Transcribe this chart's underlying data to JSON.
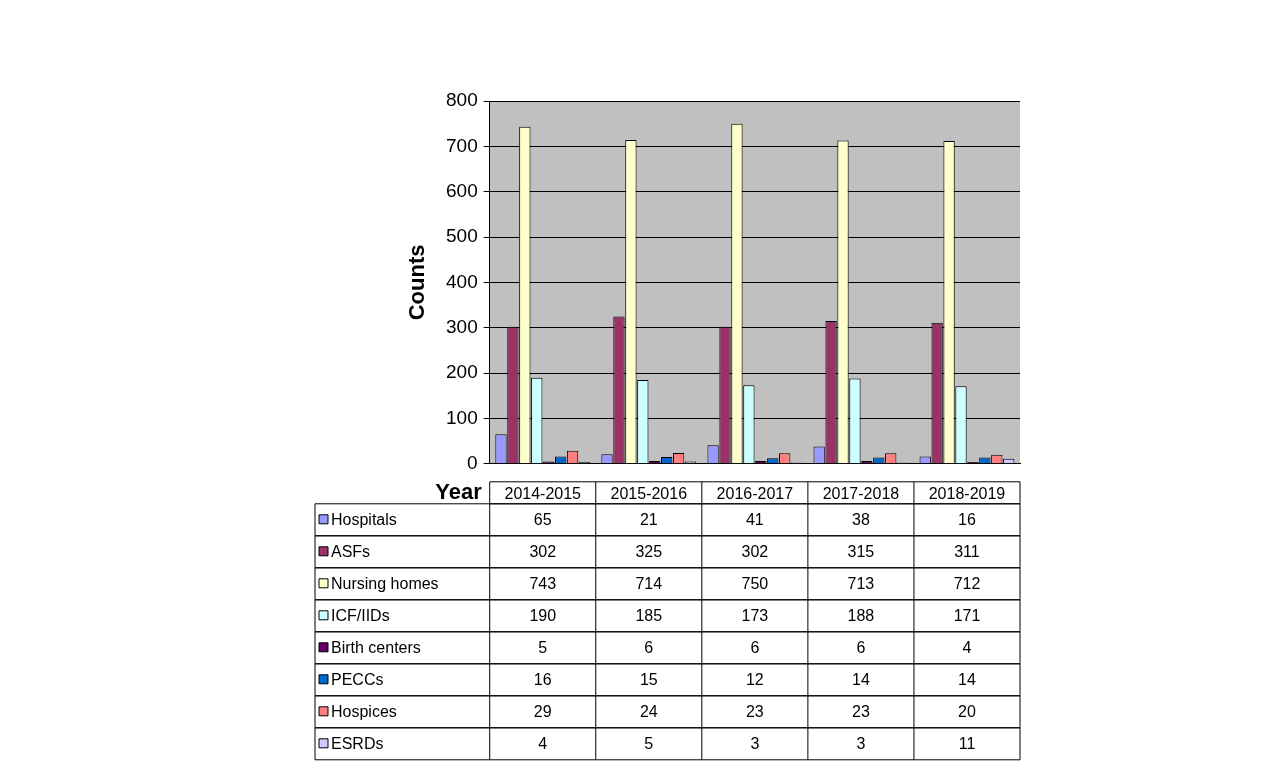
{
  "chart_data": {
    "type": "bar",
    "xlabel": "Year",
    "ylabel": "Counts",
    "categories": [
      "2014-2015",
      "2015-2016",
      "2016-2017",
      "2017-2018",
      "2018-2019"
    ],
    "series": [
      {
        "name": "Hospitals",
        "color": "#9999ff",
        "values": [
          65,
          21,
          41,
          38,
          16
        ]
      },
      {
        "name": "ASFs",
        "color": "#993366",
        "values": [
          302,
          325,
          302,
          315,
          311
        ]
      },
      {
        "name": "Nursing homes",
        "color": "#ffffcc",
        "values": [
          743,
          714,
          750,
          713,
          712
        ]
      },
      {
        "name": "ICF/IIDs",
        "color": "#ccffff",
        "values": [
          190,
          185,
          173,
          188,
          171
        ]
      },
      {
        "name": "Birth centers",
        "color": "#660066",
        "values": [
          5,
          6,
          6,
          6,
          4
        ]
      },
      {
        "name": "PECCs",
        "color": "#0066cc",
        "values": [
          16,
          15,
          12,
          14,
          14
        ]
      },
      {
        "name": "Hospices",
        "color": "#ff8080",
        "values": [
          29,
          24,
          23,
          23,
          20
        ]
      },
      {
        "name": "ESRDs",
        "color": "#ccccff",
        "values": [
          4,
          5,
          3,
          3,
          11
        ]
      }
    ],
    "ylim": [
      0,
      800
    ],
    "yticks": [
      0,
      100,
      200,
      300,
      400,
      500,
      600,
      700,
      800
    ],
    "grid": "y",
    "legend": "bottom",
    "data_labels": true
  }
}
